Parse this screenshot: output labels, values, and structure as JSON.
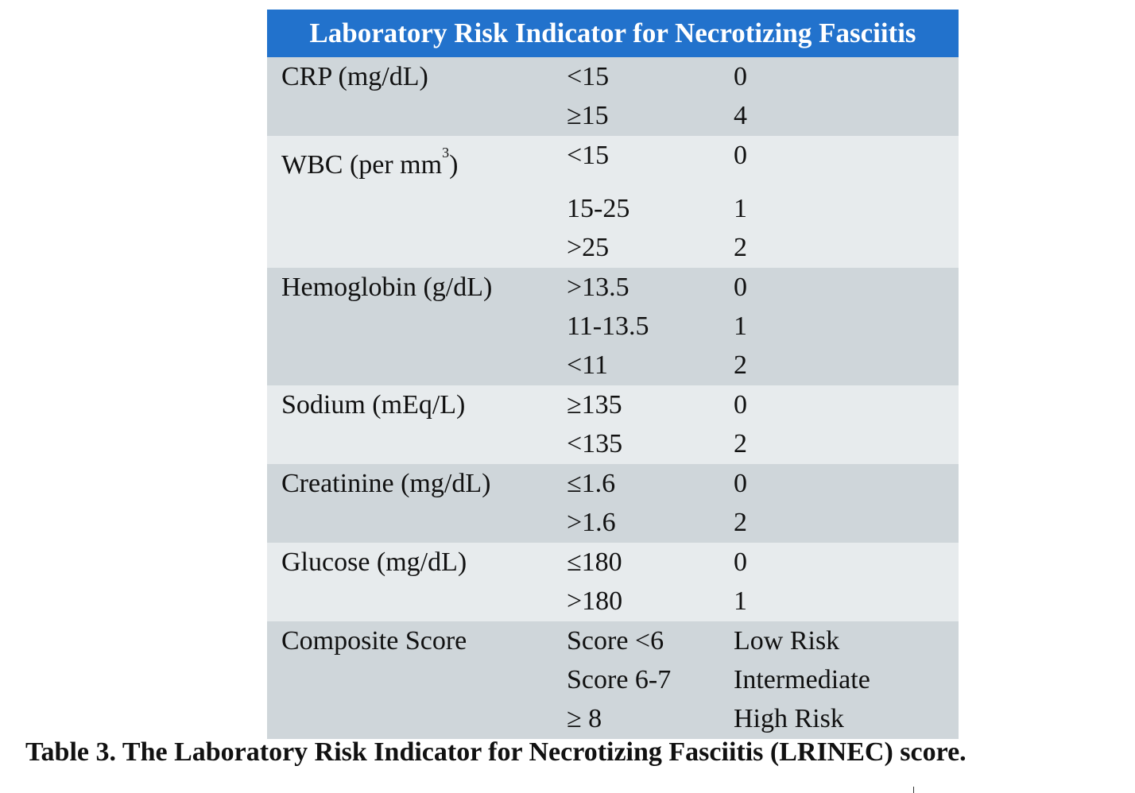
{
  "table": {
    "title": "Laboratory Risk Indicator for Necrotizing Fasciitis",
    "groups": [
      {
        "parameter": "CRP (mg/dL)",
        "rows": [
          {
            "range": "<15",
            "points": "0"
          },
          {
            "range": "≥15",
            "points": "4"
          }
        ]
      },
      {
        "parameter": "WBC (per mm",
        "parameter_superscript": "3",
        "parameter_suffix": ")",
        "rows": [
          {
            "range": "<15",
            "points": "0"
          },
          {
            "range": "15-25",
            "points": "1"
          },
          {
            "range": ">25",
            "points": "2"
          }
        ]
      },
      {
        "parameter": "Hemoglobin (g/dL)",
        "rows": [
          {
            "range": ">13.5",
            "points": "0"
          },
          {
            "range": "11-13.5",
            "points": "1"
          },
          {
            "range": "<11",
            "points": "2"
          }
        ]
      },
      {
        "parameter": "Sodium (mEq/L)",
        "rows": [
          {
            "range": "≥135",
            "points": "0"
          },
          {
            "range": "<135",
            "points": "2"
          }
        ]
      },
      {
        "parameter": "Creatinine (mg/dL)",
        "rows": [
          {
            "range": "≤1.6",
            "points": "0"
          },
          {
            "range": ">1.6",
            "points": "2"
          }
        ]
      },
      {
        "parameter": "Glucose (mg/dL)",
        "rows": [
          {
            "range": "≤180",
            "points": "0"
          },
          {
            "range": ">180",
            "points": "1"
          }
        ]
      },
      {
        "parameter": "Composite Score",
        "rows": [
          {
            "range": "Score <6",
            "points": "Low Risk"
          },
          {
            "range": "Score 6-7",
            "points": "Intermediate"
          },
          {
            "range": "≥ 8",
            "points": "High Risk"
          }
        ]
      }
    ]
  },
  "caption": "Table 3. The Laboratory Risk Indicator for Necrotizing Fasciitis (LRINEC) score.",
  "colors": {
    "header_bg": "#2272cc",
    "band_dark": "#cfd6da",
    "band_light": "#e7ebed"
  }
}
